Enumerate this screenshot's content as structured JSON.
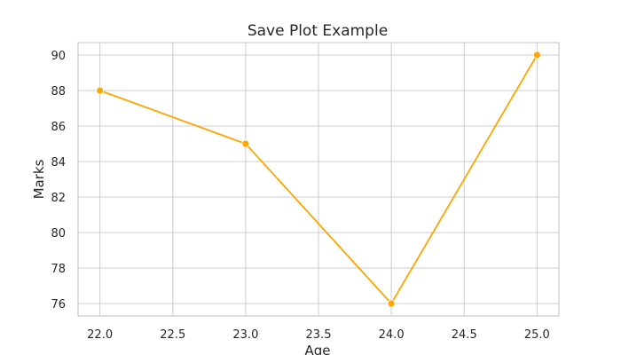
{
  "chart_data": {
    "type": "line",
    "title": "Save Plot Example",
    "xlabel": "Age",
    "ylabel": "Marks",
    "x": [
      22,
      23,
      24,
      25
    ],
    "series": [
      {
        "values": [
          88,
          85,
          76,
          90
        ],
        "color": "#ffa500",
        "marker": "circle"
      }
    ],
    "xlim": [
      21.85,
      25.15
    ],
    "ylim": [
      75.3,
      90.7
    ],
    "xticks": [
      22.0,
      22.5,
      23.0,
      23.5,
      24.0,
      24.5,
      25.0
    ],
    "xtick_labels": [
      "22.0",
      "22.5",
      "23.0",
      "23.5",
      "24.0",
      "24.5",
      "25.0"
    ],
    "yticks": [
      76,
      78,
      80,
      82,
      84,
      86,
      88,
      90
    ],
    "ytick_labels": [
      "76",
      "78",
      "80",
      "82",
      "84",
      "86",
      "88",
      "90"
    ],
    "grid": true,
    "legend": "none"
  }
}
